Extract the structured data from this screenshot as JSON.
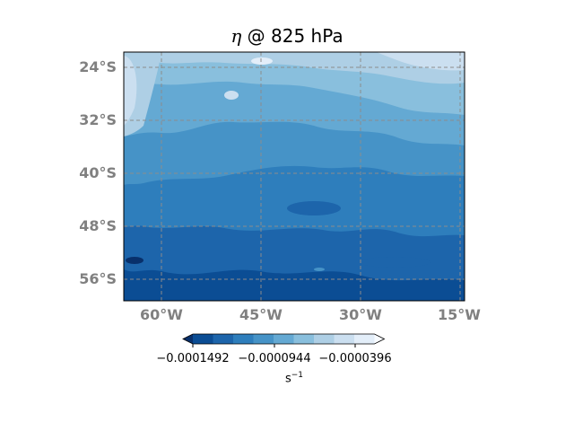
{
  "title": {
    "symbol": "η",
    "rest": " @ 825 hPa"
  },
  "map": {
    "lat_labels": [
      "24°S",
      "32°S",
      "40°S",
      "48°S",
      "56°S"
    ],
    "lon_labels": [
      "60°W",
      "45°W",
      "30°W",
      "15°W"
    ],
    "gridlines": "dashed gray",
    "field": "relative vorticity (eta) at 825 hPa",
    "colormap": "Blues_r"
  },
  "colorbar": {
    "tick_labels": [
      "−0.0001492",
      "−0.0000944",
      "−0.0000396"
    ],
    "unit_base": "s",
    "unit_exp": "−1",
    "extend": "both",
    "colors": [
      "#08306b",
      "#0b4d94",
      "#1d65ab",
      "#2e7ebc",
      "#4693c7",
      "#64a9d3",
      "#89bfdd",
      "#aecfe5",
      "#cbdff0",
      "#e3eef9",
      "#f7fbff"
    ]
  }
}
